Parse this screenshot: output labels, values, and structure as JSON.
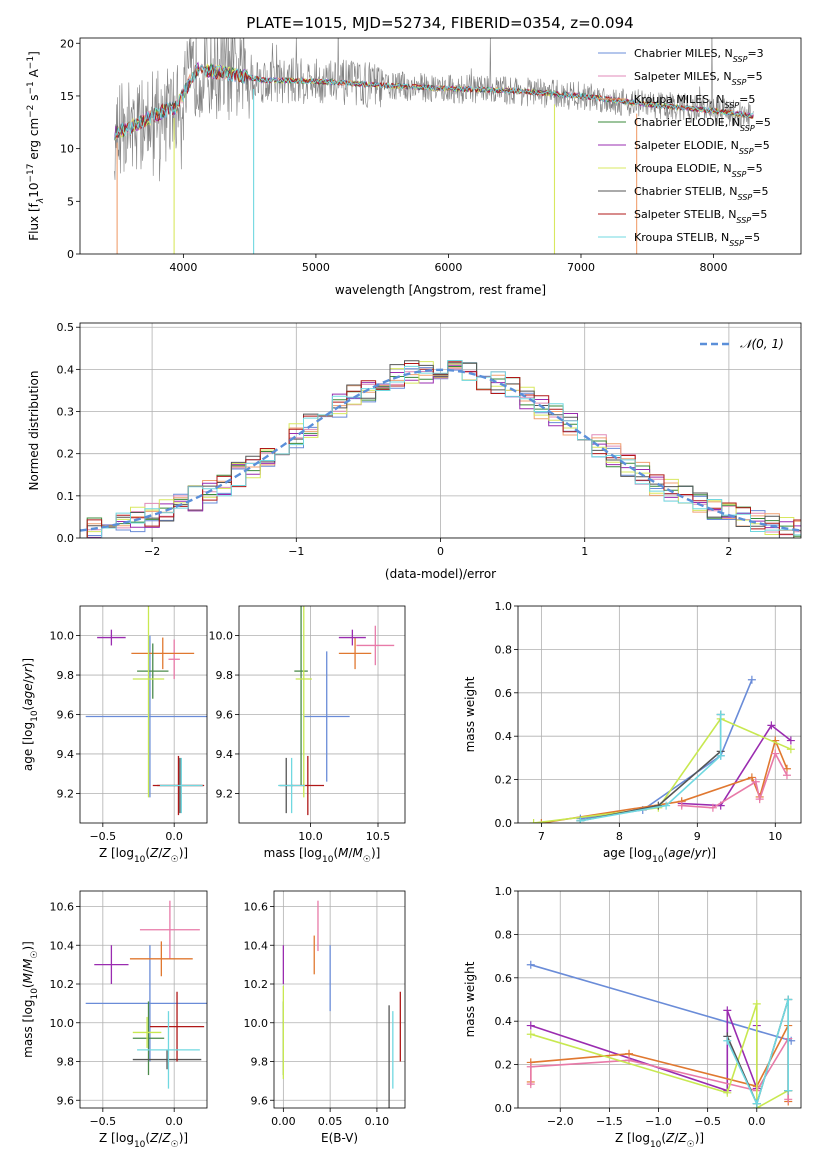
{
  "figure_title": "PLATE=1015, MJD=52734, FIBERID=0354, z=0.094",
  "colors": {
    "Chabrier MILES": "#6a8cd8",
    "Salpeter MILES": "#e08ab8",
    "Kroupa MILES": "#f0a070",
    "Chabrier ELODIE": "#3a8a3a",
    "Salpeter ELODIE": "#9a2cb0",
    "Kroupa ELODIE": "#d8e860",
    "Chabrier STELIB": "#555555",
    "Salpeter STELIB": "#b01818",
    "Kroupa STELIB": "#70d8e0",
    "gauss": "#5b8fd9",
    "blue": "#6a8cd8",
    "pink": "#e87aa8",
    "orange": "#e07830",
    "purple": "#9a2cb0",
    "lime": "#c8e850",
    "green": "#4a8a4a",
    "darkred": "#b01818",
    "gray": "#555555",
    "cyan": "#70d8e0"
  },
  "chart_data": [
    {
      "id": "spectrum",
      "type": "line",
      "xlabel": "wavelength [Angstrom, rest frame]",
      "ylabel_parts": [
        "Flux [f",
        "λ",
        "10",
        "−17",
        " erg cm",
        "−2",
        " s",
        "−1",
        " A",
        "−1",
        "]"
      ],
      "xlim": [
        3220,
        8660
      ],
      "ylim": [
        0,
        20.5
      ],
      "xticks": [
        4000,
        5000,
        6000,
        7000,
        8000
      ],
      "yticks": [
        0,
        5,
        10,
        15,
        20
      ],
      "legend_position": "right",
      "legend": [
        {
          "name": "Chabrier MILES",
          "nssp": "3"
        },
        {
          "name": "Salpeter MILES",
          "nssp": "5"
        },
        {
          "name": "Kroupa MILES",
          "nssp": "5"
        },
        {
          "name": "Chabrier ELODIE",
          "nssp": "5"
        },
        {
          "name": "Salpeter ELODIE",
          "nssp": "5"
        },
        {
          "name": "Kroupa ELODIE",
          "nssp": "5"
        },
        {
          "name": "Chabrier STELIB",
          "nssp": "5"
        },
        {
          "name": "Salpeter STELIB",
          "nssp": "5"
        },
        {
          "name": "Kroupa STELIB",
          "nssp": "5"
        }
      ],
      "data_continuum": {
        "x": [
          3480,
          3600,
          3800,
          3950,
          4100,
          4300,
          4600,
          5000,
          5500,
          6000,
          6500,
          7000,
          7500,
          8000,
          8300
        ],
        "y": [
          11.5,
          12.0,
          13.3,
          14.0,
          17.5,
          17.2,
          16.5,
          16.4,
          16.0,
          15.7,
          15.5,
          15.0,
          14.2,
          13.6,
          13.1
        ]
      },
      "model_drops": [
        3500,
        3930,
        4530,
        6800,
        7420
      ]
    },
    {
      "id": "residuals",
      "type": "histogram",
      "xlabel": "(data-model)/error",
      "ylabel": "Normed distribution",
      "xlim": [
        -2.5,
        2.5
      ],
      "ylim": [
        0,
        0.51
      ],
      "xticks": [
        -2,
        -1,
        0,
        1,
        2
      ],
      "xtick_labels": [
        "−2",
        "−1",
        "0",
        "1",
        "2"
      ],
      "yticks": [
        0.0,
        0.1,
        0.2,
        0.3,
        0.4,
        0.5
      ],
      "ytick_labels": [
        "0.0",
        "0.1",
        "0.2",
        "0.3",
        "0.4",
        "0.5"
      ],
      "bin_width": 0.1,
      "legend": "𝒩(0, 1)",
      "gauss_mean": 0,
      "gauss_sigma": 1
    },
    {
      "id": "age_vs_Z",
      "type": "errorbar",
      "xlabel": "Z [log10(Z/Z☉)]",
      "ylabel": "age [log10(age/yr)]",
      "xlim": [
        -0.66,
        0.23
      ],
      "ylim": [
        9.05,
        10.15
      ],
      "xticks": [
        -0.5,
        0.0
      ],
      "xtick_labels": [
        "−0.5",
        "0.0"
      ],
      "yticks": [
        9.2,
        9.4,
        9.6,
        9.8,
        10.0
      ],
      "yticks_labels": [
        "9.2",
        "9.4",
        "9.6",
        "9.8",
        "10.0"
      ],
      "points": [
        {
          "c": "blue",
          "x": -0.17,
          "xerr": 0.45,
          "y": 9.59,
          "yerr": 0.41
        },
        {
          "c": "pink",
          "x": 0.0,
          "xerr": 0.04,
          "y": 9.88,
          "yerr": 0.1
        },
        {
          "c": "orange",
          "x": -0.08,
          "xerr": 0.22,
          "y": 9.91,
          "yerr": 0.08
        },
        {
          "c": "green",
          "x": -0.15,
          "xerr": 0.11,
          "y": 9.82,
          "yerr": 0.14
        },
        {
          "c": "purple",
          "x": -0.44,
          "xerr": 0.1,
          "y": 9.99,
          "yerr": 0.04
        },
        {
          "c": "lime",
          "x": -0.18,
          "xerr": 0.11,
          "y": 9.78,
          "yerr": 0.6
        },
        {
          "c": "gray",
          "x": 0.04,
          "xerr": 0.16,
          "y": 9.24,
          "yerr": 0.14
        },
        {
          "c": "darkred",
          "x": 0.03,
          "xerr": 0.18,
          "y": 9.24,
          "yerr": 0.15
        },
        {
          "c": "cyan",
          "x": 0.05,
          "xerr": 0.15,
          "y": 9.24,
          "yerr": 0.14
        }
      ]
    },
    {
      "id": "age_vs_mass",
      "type": "errorbar",
      "xlabel": "mass [log10(M/M☉)]",
      "xlim": [
        9.47,
        10.7
      ],
      "ylim": [
        9.05,
        10.15
      ],
      "xticks": [
        10.0,
        10.5
      ],
      "xtick_labels": [
        "10.0",
        "10.5"
      ],
      "yticks": [
        9.2,
        9.4,
        9.6,
        9.8,
        10.0
      ],
      "yticks_labels": [
        "9.2",
        "9.4",
        "9.6",
        "9.8",
        "10.0"
      ],
      "points": [
        {
          "c": "blue",
          "x": 10.12,
          "xerr": 0.17,
          "y": 9.59,
          "yerr": 0.33
        },
        {
          "c": "pink",
          "x": 10.48,
          "xerr": 0.14,
          "y": 9.95,
          "yerr": 0.1
        },
        {
          "c": "orange",
          "x": 10.33,
          "xerr": 0.12,
          "y": 9.91,
          "yerr": 0.08
        },
        {
          "c": "green",
          "x": 9.93,
          "xerr": 0.05,
          "y": 9.82,
          "yerr": 0.58
        },
        {
          "c": "purple",
          "x": 10.31,
          "xerr": 0.1,
          "y": 9.99,
          "yerr": 0.04
        },
        {
          "c": "lime",
          "x": 9.95,
          "xerr": 0.06,
          "y": 9.78,
          "yerr": 0.6
        },
        {
          "c": "gray",
          "x": 9.82,
          "xerr": 0.05,
          "y": 9.24,
          "yerr": 0.14
        },
        {
          "c": "darkred",
          "x": 9.98,
          "xerr": 0.12,
          "y": 9.24,
          "yerr": 0.15
        },
        {
          "c": "cyan",
          "x": 9.86,
          "xerr": 0.1,
          "y": 9.24,
          "yerr": 0.14
        }
      ]
    },
    {
      "id": "mass_weight_vs_age",
      "type": "line",
      "xlabel": "age [log10(age/yr)]",
      "ylabel": "mass weight",
      "xlim": [
        6.7,
        10.33
      ],
      "ylim": [
        0,
        1.0
      ],
      "xticks": [
        7,
        8,
        9,
        10
      ],
      "xtick_labels": [
        "7",
        "8",
        "9",
        "10"
      ],
      "yticks": [
        0.0,
        0.2,
        0.4,
        0.6,
        0.8,
        1.0
      ],
      "yticks_labels": [
        "0.0",
        "0.2",
        "0.4",
        "0.6",
        "0.8",
        "1.0"
      ],
      "series": [
        {
          "c": "blue",
          "x": [
            7.5,
            8.3,
            9.3,
            9.7
          ],
          "y": [
            0.02,
            0.06,
            0.31,
            0.66
          ]
        },
        {
          "c": "purple",
          "x": [
            8.8,
            9.3,
            9.95,
            10.2
          ],
          "y": [
            0.09,
            0.08,
            0.45,
            0.38
          ]
        },
        {
          "c": "orange",
          "x": [
            7.0,
            8.8,
            9.7,
            9.8,
            10.0,
            10.15
          ],
          "y": [
            0.0,
            0.1,
            0.21,
            0.12,
            0.38,
            0.25
          ]
        },
        {
          "c": "pink",
          "x": [
            8.8,
            9.2,
            9.75,
            9.8,
            10.0,
            10.15
          ],
          "y": [
            0.08,
            0.07,
            0.19,
            0.11,
            0.32,
            0.22
          ]
        },
        {
          "c": "lime",
          "x": [
            6.9,
            8.5,
            9.3,
            10.2
          ],
          "y": [
            0.0,
            0.07,
            0.48,
            0.34
          ]
        },
        {
          "c": "gray",
          "x": [
            7.5,
            8.5,
            9.3,
            9.3
          ],
          "y": [
            0.01,
            0.08,
            0.33,
            0.5
          ]
        },
        {
          "c": "cyan",
          "x": [
            7.5,
            8.6,
            9.3,
            9.3
          ],
          "y": [
            0.01,
            0.08,
            0.31,
            0.5
          ]
        }
      ]
    },
    {
      "id": "mass_vs_Z",
      "type": "errorbar",
      "xlabel": "Z [log10(Z/Z☉)]",
      "ylabel": "mass [log10(M/M☉)]",
      "xlim": [
        -0.66,
        0.23
      ],
      "ylim": [
        9.56,
        10.68
      ],
      "xticks": [
        -0.5,
        0.0
      ],
      "xtick_labels": [
        "−0.5",
        "0.0"
      ],
      "yticks": [
        9.6,
        9.8,
        10.0,
        10.2,
        10.4,
        10.6
      ],
      "yticks_labels": [
        "9.6",
        "9.8",
        "10.0",
        "10.2",
        "10.4",
        "10.6"
      ],
      "points": [
        {
          "c": "blue",
          "x": -0.17,
          "xerr": 0.45,
          "y": 10.1,
          "yerr": 0.3
        },
        {
          "c": "pink",
          "x": -0.03,
          "xerr": 0.21,
          "y": 10.48,
          "yerr": 0.15
        },
        {
          "c": "orange",
          "x": -0.09,
          "xerr": 0.22,
          "y": 10.33,
          "yerr": 0.09
        },
        {
          "c": "green",
          "x": -0.18,
          "xerr": 0.11,
          "y": 9.92,
          "yerr": 0.19
        },
        {
          "c": "purple",
          "x": -0.44,
          "xerr": 0.12,
          "y": 10.3,
          "yerr": 0.1
        },
        {
          "c": "lime",
          "x": -0.19,
          "xerr": 0.1,
          "y": 9.95,
          "yerr": 0.08
        },
        {
          "c": "gray",
          "x": -0.05,
          "xerr": 0.24,
          "y": 9.81,
          "yerr": 0.05
        },
        {
          "c": "darkred",
          "x": 0.02,
          "xerr": 0.19,
          "y": 9.98,
          "yerr": 0.18
        },
        {
          "c": "cyan",
          "x": -0.04,
          "xerr": 0.22,
          "y": 9.86,
          "yerr": 0.2
        }
      ]
    },
    {
      "id": "mass_vs_EBV",
      "type": "errorbar",
      "xlabel": "E(B-V)",
      "xlim": [
        -0.01,
        0.13
      ],
      "ylim": [
        9.56,
        10.68
      ],
      "xticks": [
        0.0,
        0.05,
        0.1
      ],
      "xtick_labels": [
        "0.00",
        "0.05",
        "0.10"
      ],
      "yticks": [
        9.6,
        9.8,
        10.0,
        10.2,
        10.4,
        10.6
      ],
      "yticks_labels": [
        "9.6",
        "9.8",
        "10.0",
        "10.2",
        "10.4",
        "10.6"
      ],
      "points": [
        {
          "c": "blue",
          "x": 0.05,
          "xerr": 0,
          "y": 10.23,
          "yerr": 0.17
        },
        {
          "c": "pink",
          "x": 0.037,
          "xerr": 0,
          "y": 10.5,
          "yerr": 0.13
        },
        {
          "c": "orange",
          "x": 0.033,
          "xerr": 0,
          "y": 10.35,
          "yerr": 0.1
        },
        {
          "c": "green",
          "x": 0.0,
          "xerr": 0,
          "y": 9.92,
          "yerr": 0.19
        },
        {
          "c": "purple",
          "x": 0.0,
          "xerr": 0,
          "y": 10.3,
          "yerr": 0.1
        },
        {
          "c": "lime",
          "x": 0.0,
          "xerr": 0,
          "y": 9.95,
          "yerr": 0.24
        },
        {
          "c": "gray",
          "x": 0.113,
          "xerr": 0,
          "y": 9.81,
          "yerr": 0.28
        },
        {
          "c": "darkred",
          "x": 0.125,
          "xerr": 0,
          "y": 9.98,
          "yerr": 0.18
        },
        {
          "c": "cyan",
          "x": 0.117,
          "xerr": 0,
          "y": 9.86,
          "yerr": 0.2
        }
      ]
    },
    {
      "id": "mass_weight_vs_Z",
      "type": "line",
      "xlabel": "Z [log10(Z/Z☉)]",
      "ylabel": "mass weight",
      "xlim": [
        -2.43,
        0.45
      ],
      "ylim": [
        0,
        1.0
      ],
      "xticks": [
        -2.0,
        -1.5,
        -1.0,
        -0.5,
        0.0
      ],
      "xtick_labels": [
        "−2.0",
        "−1.5",
        "−1.0",
        "−0.5",
        "0.0"
      ],
      "yticks": [
        0.0,
        0.2,
        0.4,
        0.6,
        0.8,
        1.0
      ],
      "yticks_labels": [
        "0.0",
        "0.2",
        "0.4",
        "0.6",
        "0.8",
        "1.0"
      ],
      "series": [
        {
          "c": "blue",
          "x": [
            -2.3,
            0.35
          ],
          "y": [
            0.66,
            0.31
          ]
        },
        {
          "c": "purple",
          "x": [
            -2.3,
            -0.3,
            -0.3,
            0.0,
            0.0
          ],
          "y": [
            0.38,
            0.08,
            0.45,
            0.09,
            0.38
          ]
        },
        {
          "c": "orange",
          "x": [
            -2.3,
            -2.3,
            -1.3,
            0.0,
            0.32,
            0.32
          ],
          "y": [
            0.12,
            0.21,
            0.25,
            0.1,
            0.38,
            0.03
          ]
        },
        {
          "c": "pink",
          "x": [
            -2.3,
            -2.3,
            -1.3,
            0.0,
            0.32,
            0.32
          ],
          "y": [
            0.11,
            0.19,
            0.22,
            0.08,
            0.32,
            0.04
          ]
        },
        {
          "c": "lime",
          "x": [
            -2.3,
            -0.3,
            0.0,
            0.0,
            0.32
          ],
          "y": [
            0.34,
            0.07,
            0.48,
            0.0,
            0.08
          ]
        },
        {
          "c": "gray",
          "x": [
            -0.3,
            0.0,
            0.32,
            0.32
          ],
          "y": [
            0.33,
            0.02,
            0.5,
            0.08
          ]
        },
        {
          "c": "cyan",
          "x": [
            -0.3,
            0.0,
            0.32,
            0.32
          ],
          "y": [
            0.31,
            0.02,
            0.5,
            0.08
          ]
        }
      ]
    }
  ]
}
